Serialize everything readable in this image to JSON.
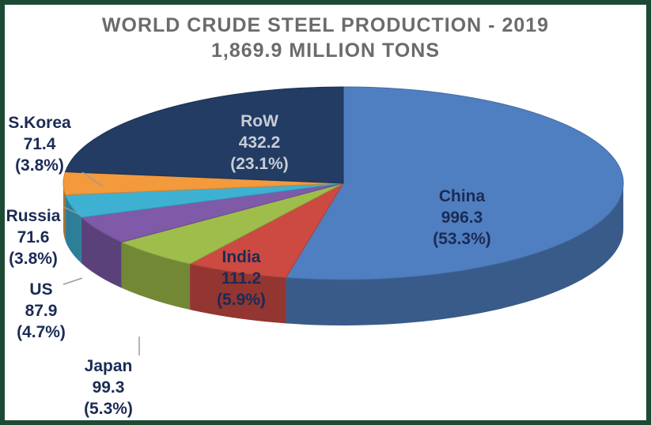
{
  "chart_data": {
    "type": "pie",
    "title": "WORLD CRUDE STEEL PRODUCTION - 2019",
    "subtitle": "1,869.9 MILLION TONS",
    "slices": [
      {
        "name": "China",
        "value": 996.3,
        "value_label": "996.3",
        "percent": "(53.3%)",
        "color": "#4f7fc0"
      },
      {
        "name": "India",
        "value": 111.2,
        "value_label": "111.2",
        "percent": "(5.9%)",
        "color": "#cc4a42"
      },
      {
        "name": "Japan",
        "value": 99.3,
        "value_label": "99.3",
        "percent": "(5.3%)",
        "color": "#9fbd4a"
      },
      {
        "name": "US",
        "value": 87.9,
        "value_label": "87.9",
        "percent": "(4.7%)",
        "color": "#7e5aa8"
      },
      {
        "name": "Russia",
        "value": 71.6,
        "value_label": "71.6",
        "percent": "(3.8%)",
        "color": "#3eb1d3"
      },
      {
        "name": "S.Korea",
        "value": 71.4,
        "value_label": "71.4",
        "percent": "(3.8%)",
        "color": "#f29a3c"
      },
      {
        "name": "RoW",
        "value": 432.2,
        "value_label": "432.2",
        "percent": "(23.1%)",
        "color": "#223c63"
      }
    ]
  }
}
